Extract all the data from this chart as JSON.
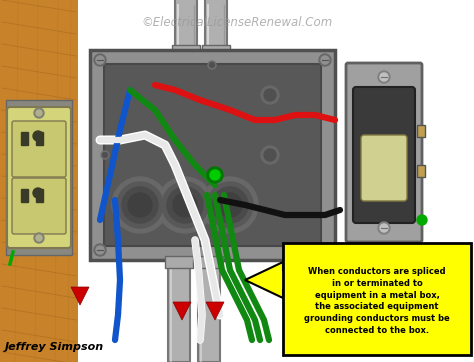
{
  "watermark": "©ElectricalLicenseRenewal.Com",
  "caption": "Jeffrey Simpson",
  "callout_text": "When conductors are spliced\nin or terminated to\nequipment in a metal box,\nthe associated equipment\ngrounding conductors must be\nconnected to the box.",
  "bg_color": "#ffffff",
  "wood_color_light": "#c8832a",
  "wood_color_dark": "#a0621a",
  "metal_outer": "#909090",
  "metal_inner": "#7a7a7a",
  "metal_dark": "#585858",
  "conduit_color": "#b0b0b0",
  "outlet_body": "#d4d47a",
  "outlet_face": "#c8c870",
  "outlet_dark": "#3a3a28",
  "switch_body": "#3a3a3a",
  "switch_plate": "#a0a0a0",
  "switch_toggle": "#d0d090",
  "wire_white": "#e8e8e8",
  "wire_black": "#111111",
  "wire_red": "#dd1111",
  "wire_blue": "#1155cc",
  "wire_green": "#118811",
  "ground_dot": "#00cc00",
  "callout_bg": "#ffff00",
  "callout_border": "#000000",
  "arrow_fill": "#ffff00",
  "red_arrow": "#cc0000",
  "green_screw": "#00aa00"
}
